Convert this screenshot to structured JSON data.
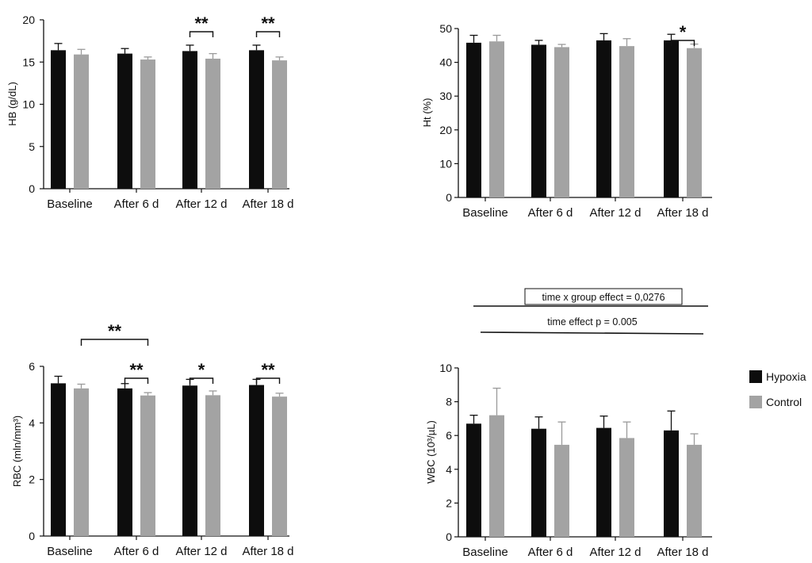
{
  "colors": {
    "hypoxia": "#0d0d0d",
    "control": "#a3a3a3"
  },
  "legend": {
    "placement": "right",
    "items": [
      {
        "label": "Hypoxia",
        "color": "#0d0d0d"
      },
      {
        "label": "Control",
        "color": "#a3a3a3"
      }
    ]
  },
  "chart_data": [
    {
      "type": "bar",
      "categories": [
        "Baseline",
        "After 6 d",
        "After 12 d",
        "After 18 d"
      ],
      "ylabel": "HB (g/dL)",
      "ylim": [
        0,
        20
      ],
      "yticks": [
        "0",
        "5",
        "10",
        "15",
        "20"
      ],
      "series": [
        {
          "name": "Hypoxia",
          "values": [
            16.4,
            16.0,
            16.3,
            16.4
          ],
          "errors": [
            0.8,
            0.6,
            0.7,
            0.6
          ]
        },
        {
          "name": "Control",
          "values": [
            15.9,
            15.3,
            15.4,
            15.2
          ],
          "errors": [
            0.6,
            0.3,
            0.6,
            0.4
          ]
        }
      ],
      "annotations": [
        {
          "text": "**",
          "category": 2,
          "span": "pair"
        },
        {
          "text": "**",
          "category": 3,
          "span": "pair"
        }
      ],
      "grid": false
    },
    {
      "type": "bar",
      "categories": [
        "Baseline",
        "After 6 d",
        "After 12 d",
        "After 18 d"
      ],
      "ylabel": "Ht (%)",
      "ylim": [
        0,
        50
      ],
      "yticks": [
        "0",
        "10",
        "20",
        "30",
        "40",
        "50"
      ],
      "series": [
        {
          "name": "Hypoxia",
          "values": [
            45.8,
            45.2,
            46.5,
            46.5
          ],
          "errors": [
            2.2,
            1.3,
            2.0,
            1.8
          ]
        },
        {
          "name": "Control",
          "values": [
            46.2,
            44.5,
            44.8,
            44.2
          ],
          "errors": [
            1.8,
            0.8,
            2.2,
            1.2
          ]
        }
      ],
      "annotations": [
        {
          "text": "*",
          "category": 3,
          "span": "pair"
        }
      ],
      "grid": false
    },
    {
      "type": "bar",
      "categories": [
        "Baseline",
        "After 6 d",
        "After 12 d",
        "After 18 d"
      ],
      "ylabel": "RBC (mln/mm³)",
      "ylim": [
        0,
        6
      ],
      "yticks": [
        "0",
        "2",
        "4",
        "6"
      ],
      "series": [
        {
          "name": "Hypoxia",
          "values": [
            5.4,
            5.22,
            5.32,
            5.34
          ],
          "errors": [
            0.25,
            0.17,
            0.22,
            0.2
          ]
        },
        {
          "name": "Control",
          "values": [
            5.22,
            4.97,
            4.98,
            4.93
          ],
          "errors": [
            0.15,
            0.1,
            0.15,
            0.12
          ]
        }
      ],
      "annotations": [
        {
          "text": "**",
          "category": 1,
          "span": "control-baseline-to-6d"
        },
        {
          "text": "**",
          "category": 1,
          "span": "pair"
        },
        {
          "text": "*",
          "category": 2,
          "span": "pair"
        },
        {
          "text": "**",
          "category": 3,
          "span": "pair"
        }
      ],
      "grid": false
    },
    {
      "type": "bar",
      "categories": [
        "Baseline",
        "After 6 d",
        "After 12 d",
        "After 18 d"
      ],
      "ylabel": "WBC (10³/µL)",
      "ylim": [
        0,
        10
      ],
      "yticks": [
        "0",
        "2",
        "4",
        "6",
        "8",
        "10"
      ],
      "series": [
        {
          "name": "Hypoxia",
          "values": [
            6.7,
            6.4,
            6.45,
            6.3
          ],
          "errors": [
            0.5,
            0.7,
            0.7,
            1.15
          ]
        },
        {
          "name": "Control",
          "values": [
            7.2,
            5.45,
            5.85,
            5.45
          ],
          "errors": [
            1.6,
            1.35,
            0.95,
            0.65
          ]
        }
      ],
      "annotations": [
        {
          "text": "time x group effect = 0,0276",
          "type": "bracket"
        },
        {
          "text": "time effect  p = 0.005",
          "type": "bracket"
        }
      ],
      "grid": false
    }
  ]
}
